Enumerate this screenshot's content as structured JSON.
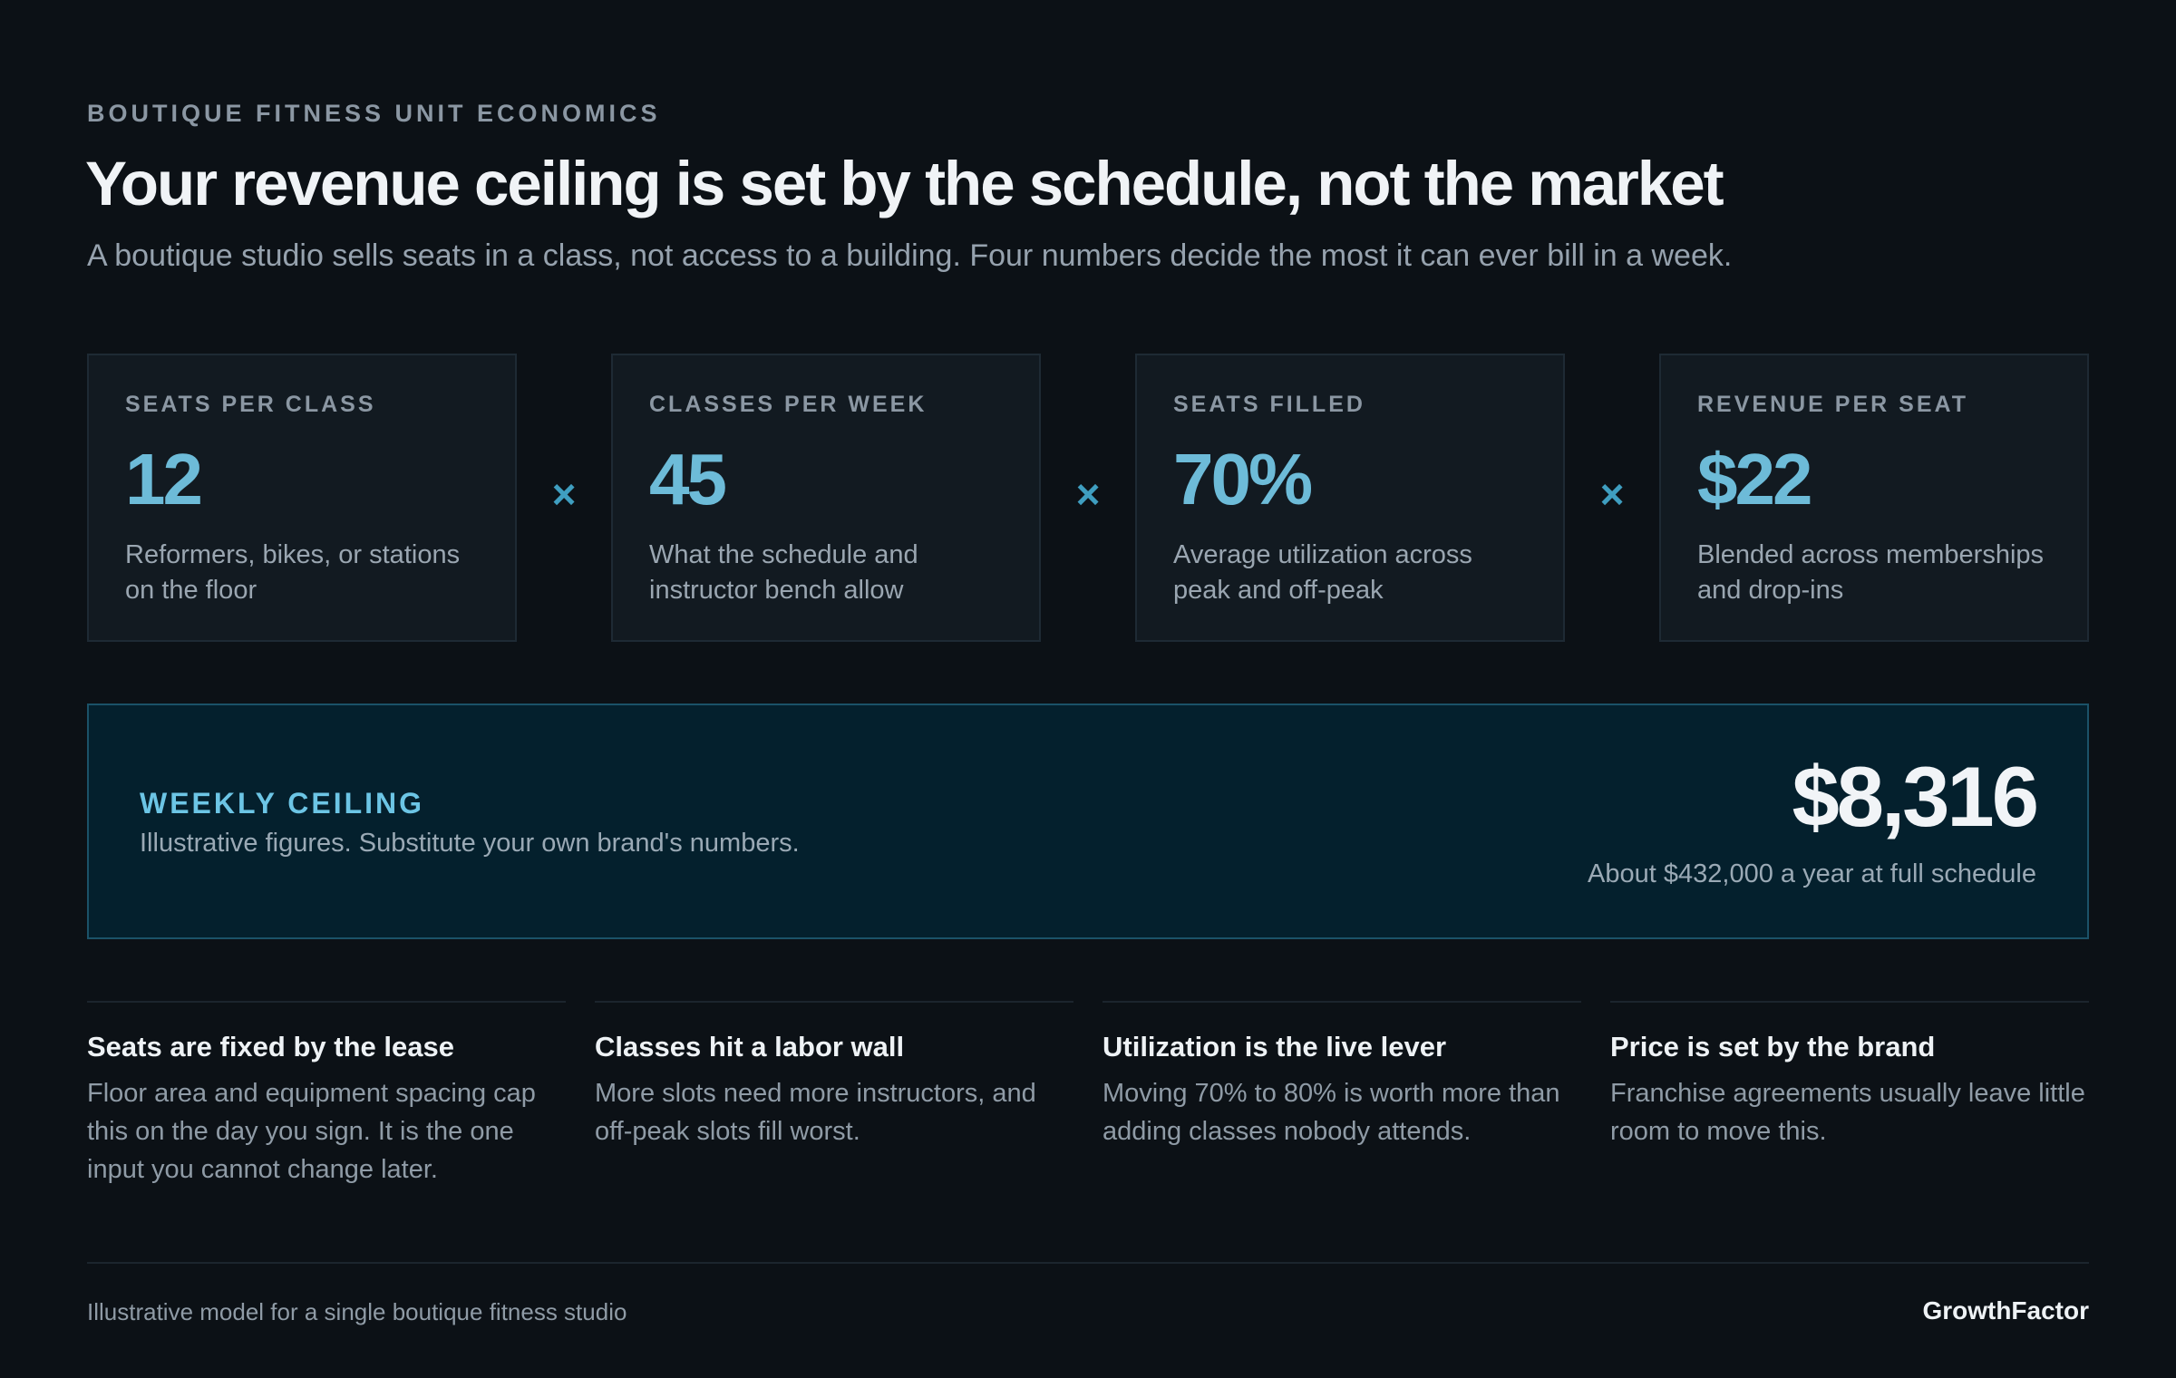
{
  "header": {
    "eyebrow": "BOUTIQUE FITNESS UNIT ECONOMICS",
    "title": "Your revenue ceiling is set by the schedule, not the market",
    "subtitle": "A boutique studio sells seats in a class, not access to a building. Four numbers decide the most it can ever bill in a week."
  },
  "metrics": [
    {
      "label": "SEATS PER CLASS",
      "value": "12",
      "desc": "Reformers, bikes, or stations on the floor"
    },
    {
      "label": "CLASSES PER WEEK",
      "value": "45",
      "desc": "What the schedule and instructor bench allow"
    },
    {
      "label": "SEATS FILLED",
      "value": "70%",
      "desc": "Average utilization across peak and off-peak"
    },
    {
      "label": "REVENUE PER SEAT",
      "value": "$22",
      "desc": "Blended across memberships and drop-ins"
    }
  ],
  "operator_symbol": "×",
  "ceiling": {
    "label": "WEEKLY CEILING",
    "note": "Illustrative figures. Substitute your own brand's numbers.",
    "value": "$8,316",
    "annual": "About $432,000 a year at full schedule"
  },
  "notes": [
    {
      "title": "Seats are fixed by the lease",
      "body": "Floor area and equipment spacing cap this on the day you sign. It is the one input you cannot change later."
    },
    {
      "title": "Classes hit a labor wall",
      "body": "More slots need more instructors, and off-peak slots fill worst."
    },
    {
      "title": "Utilization is the live lever",
      "body": "Moving 70% to 80% is worth more than adding classes nobody attends."
    },
    {
      "title": "Price is set by the brand",
      "body": "Franchise agreements usually leave little room to move this."
    }
  ],
  "footer": {
    "caption": "Illustrative model for a single boutique fitness studio",
    "brand": "GrowthFactor"
  },
  "colors": {
    "background": "#0c1116",
    "accent": "#6dbbd8",
    "ceiling_panel": "#04202d"
  }
}
